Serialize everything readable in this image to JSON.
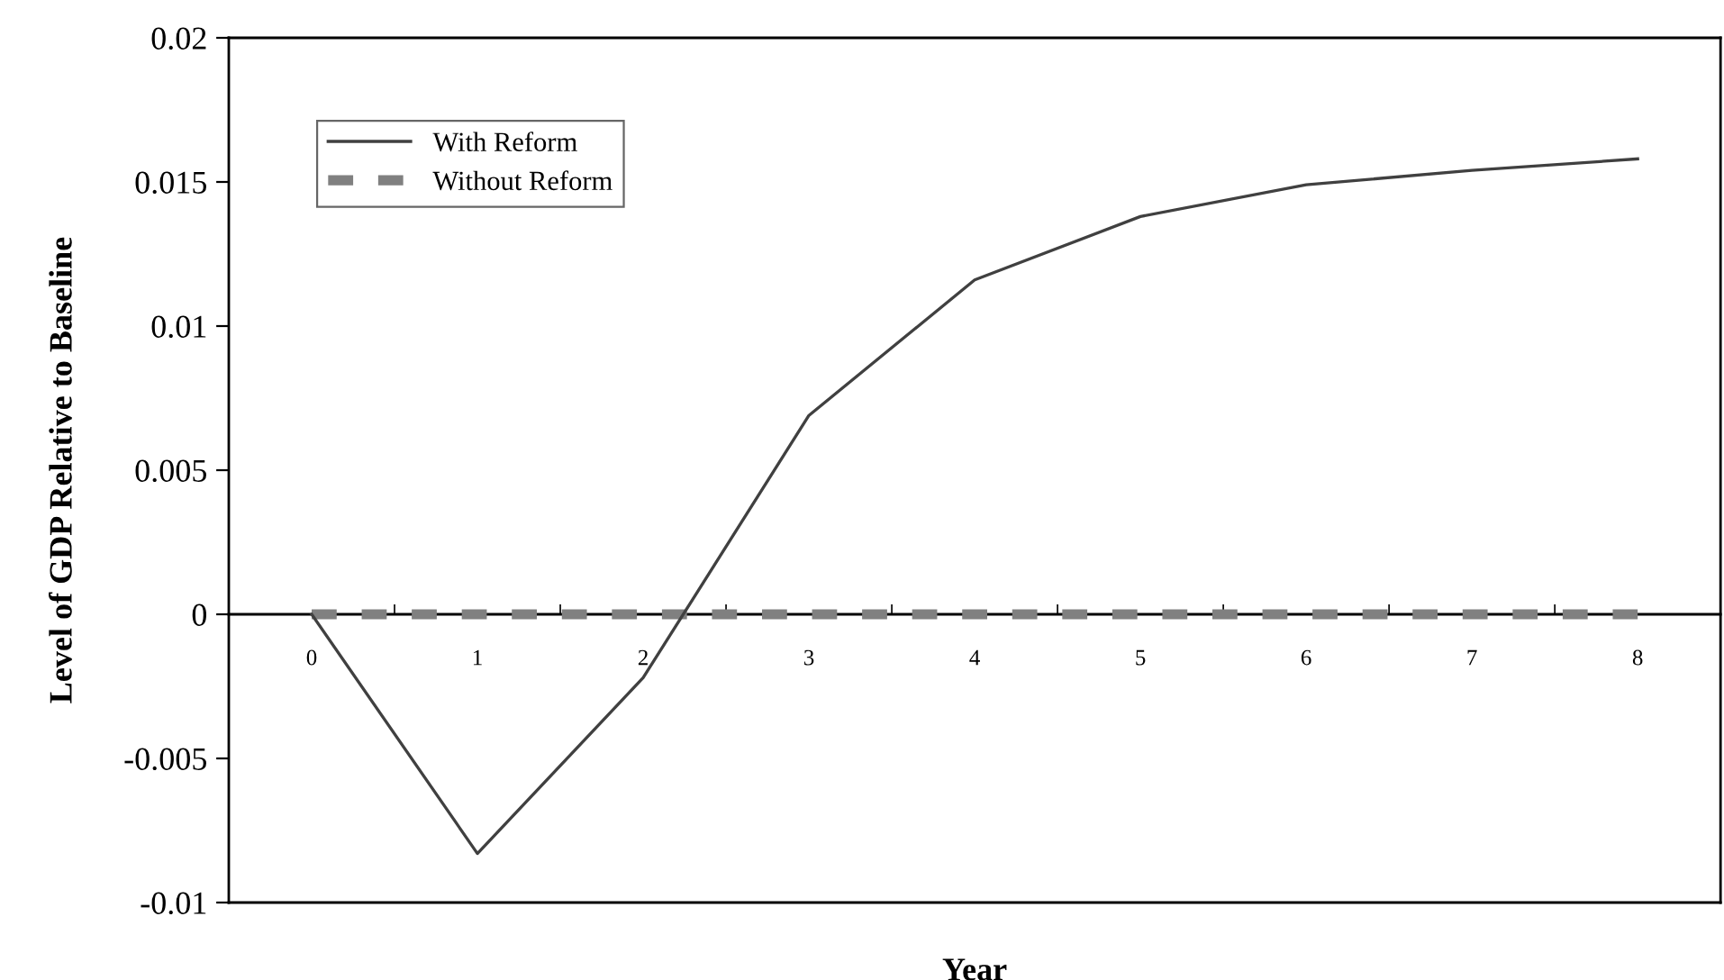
{
  "chart_data": {
    "type": "line",
    "xlabel": "Year",
    "ylabel": "Level of GDP Relative to Baseline",
    "categories": [
      "0",
      "1",
      "2",
      "3",
      "4",
      "5",
      "6",
      "7",
      "8"
    ],
    "series": [
      {
        "name": "With Reform",
        "color": "#404040",
        "line_style": "solid",
        "values": [
          0,
          -0.0083,
          -0.0022,
          0.0069,
          0.0116,
          0.0138,
          0.0149,
          0.0154,
          0.0158
        ]
      },
      {
        "name": "Without Reform",
        "color": "#808080",
        "line_style": "dashed",
        "values": [
          0,
          0,
          0,
          0,
          0,
          0,
          0,
          0,
          0
        ]
      }
    ],
    "ylim": [
      -0.01,
      0.02
    ],
    "yticks": [
      -0.01,
      -0.005,
      0,
      0.005,
      0.01,
      0.015,
      0.02
    ],
    "grid": false,
    "legend": "top left",
    "marker": "none"
  }
}
